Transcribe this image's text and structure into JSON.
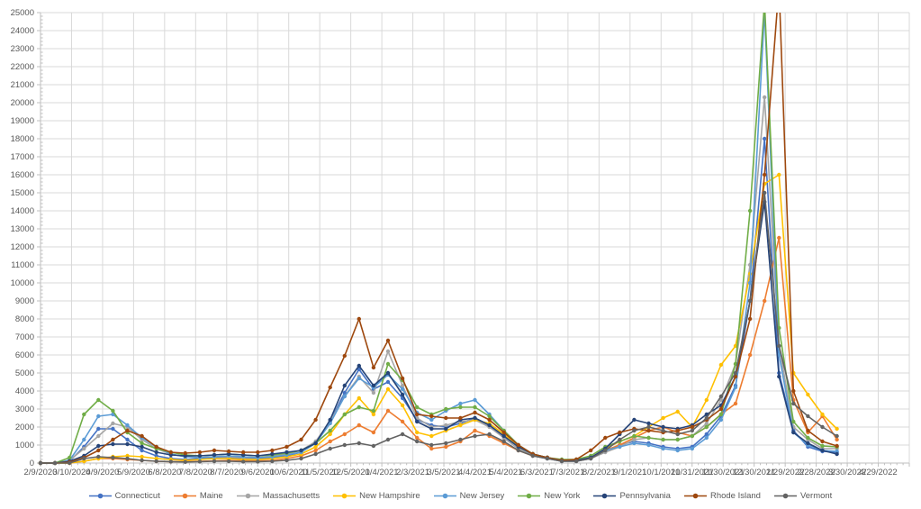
{
  "chart_data": {
    "type": "line",
    "title": "",
    "legend_position": "bottom",
    "grid": true,
    "y_axis": {
      "min": 0,
      "max": 25000,
      "tick_step": 1000
    },
    "x_axis": {
      "start_date": "2/9/2020",
      "interval_days": 30,
      "labels": [
        "2/9/2020",
        "3/10/2020",
        "4/9/2020",
        "5/9/2020",
        "6/8/2020",
        "7/8/2020",
        "8/7/2020",
        "9/6/2020",
        "10/6/2020",
        "11/5/2020",
        "12/5/2020",
        "1/4/2021",
        "2/3/2021",
        "3/5/2021",
        "4/4/2021",
        "5/4/2021",
        "6/3/2021",
        "7/3/2021",
        "8/2/2021",
        "9/1/2021",
        "10/1/2021",
        "10/31/2021",
        "11/30/2021",
        "12/30/2021",
        "1/29/2022",
        "2/28/2022",
        "3/30/2022",
        "4/29/2022"
      ]
    },
    "point_interval_days": 14,
    "dates": [
      "2/9/2020",
      "2/23/2020",
      "3/8/2020",
      "3/22/2020",
      "4/5/2020",
      "4/19/2020",
      "5/3/2020",
      "5/17/2020",
      "5/31/2020",
      "6/14/2020",
      "6/28/2020",
      "7/12/2020",
      "7/26/2020",
      "8/9/2020",
      "8/23/2020",
      "9/6/2020",
      "9/20/2020",
      "10/4/2020",
      "10/18/2020",
      "11/1/2020",
      "11/15/2020",
      "11/29/2020",
      "12/13/2020",
      "12/27/2020",
      "1/10/2021",
      "1/24/2021",
      "2/7/2021",
      "2/21/2021",
      "3/7/2021",
      "3/21/2021",
      "4/4/2021",
      "4/18/2021",
      "5/2/2021",
      "5/16/2021",
      "5/30/2021",
      "6/13/2021",
      "6/27/2021",
      "7/11/2021",
      "7/25/2021",
      "8/8/2021",
      "8/22/2021",
      "9/5/2021",
      "9/19/2021",
      "10/3/2021",
      "10/17/2021",
      "10/31/2021",
      "11/14/2021",
      "11/28/2021",
      "12/12/2021",
      "12/26/2021",
      "1/9/2022",
      "1/23/2022",
      "2/6/2022",
      "2/20/2022",
      "3/6/2022",
      "3/20/2022"
    ],
    "series": [
      {
        "name": "Connecticut",
        "color": "#4472C4",
        "values": [
          0,
          0,
          100,
          900,
          1900,
          1900,
          1300,
          700,
          400,
          250,
          200,
          250,
          300,
          300,
          250,
          250,
          300,
          400,
          600,
          1100,
          2300,
          3900,
          5200,
          4100,
          4500,
          3600,
          2400,
          2100,
          2000,
          2200,
          2500,
          2100,
          1400,
          800,
          400,
          250,
          100,
          100,
          250,
          700,
          1000,
          1200,
          1100,
          900,
          800,
          900,
          1600,
          2600,
          4300,
          9000,
          18000,
          5000,
          1800,
          900,
          650,
          600
        ]
      },
      {
        "name": "Maine",
        "color": "#ED7D31",
        "values": [
          0,
          0,
          0,
          100,
          250,
          250,
          200,
          150,
          100,
          80,
          80,
          100,
          120,
          150,
          130,
          120,
          150,
          250,
          400,
          700,
          1200,
          1600,
          2100,
          1700,
          2900,
          2300,
          1400,
          800,
          900,
          1200,
          1800,
          1500,
          1100,
          700,
          400,
          300,
          150,
          150,
          300,
          700,
          1000,
          1400,
          1800,
          2000,
          1700,
          1500,
          2000,
          2700,
          3300,
          6000,
          9000,
          12500,
          3500,
          1700,
          2600,
          1300
        ]
      },
      {
        "name": "Massachusetts",
        "color": "#A5A5A5",
        "values": [
          0,
          0,
          150,
          800,
          1500,
          2200,
          2000,
          1300,
          800,
          500,
          350,
          300,
          350,
          350,
          300,
          300,
          400,
          500,
          700,
          1200,
          2300,
          3700,
          4800,
          3900,
          6200,
          4300,
          2500,
          2000,
          2100,
          2300,
          2400,
          2000,
          1400,
          800,
          400,
          250,
          100,
          100,
          250,
          600,
          900,
          1300,
          1400,
          1300,
          1300,
          1500,
          2200,
          3500,
          5500,
          11000,
          20300,
          6500,
          2000,
          1300,
          800,
          800
        ]
      },
      {
        "name": "New Hampshire",
        "color": "#FFC000",
        "values": [
          0,
          0,
          0,
          100,
          250,
          350,
          400,
          350,
          250,
          200,
          150,
          200,
          250,
          250,
          200,
          200,
          250,
          350,
          500,
          900,
          1600,
          2700,
          3600,
          2700,
          4100,
          3200,
          1700,
          1500,
          1800,
          2100,
          2400,
          2200,
          1600,
          900,
          500,
          300,
          150,
          150,
          300,
          800,
          1200,
          1500,
          2000,
          2500,
          2850,
          2000,
          3500,
          5450,
          6500,
          10500,
          15500,
          16000,
          5000,
          3800,
          2700,
          1900
        ]
      },
      {
        "name": "New Jersey",
        "color": "#5B9BD5",
        "values": [
          0,
          0,
          150,
          1300,
          2600,
          2700,
          2100,
          1400,
          900,
          500,
          350,
          300,
          350,
          400,
          350,
          300,
          350,
          450,
          600,
          1100,
          2200,
          3700,
          4700,
          4200,
          4900,
          4100,
          2800,
          2400,
          2900,
          3300,
          3500,
          2700,
          1800,
          1000,
          500,
          300,
          150,
          150,
          300,
          700,
          900,
          1100,
          1000,
          800,
          700,
          800,
          1400,
          2400,
          4200,
          10000,
          25100,
          6000,
          1700,
          1000,
          700,
          650
        ]
      },
      {
        "name": "New York",
        "color": "#70AD47",
        "values": [
          0,
          0,
          300,
          2700,
          3500,
          2900,
          1700,
          1100,
          800,
          600,
          450,
          400,
          450,
          500,
          450,
          400,
          450,
          550,
          700,
          1100,
          1800,
          2700,
          3100,
          2900,
          5500,
          4600,
          3100,
          2700,
          3000,
          3100,
          3100,
          2600,
          1800,
          1000,
          500,
          300,
          200,
          200,
          400,
          900,
          1200,
          1500,
          1400,
          1300,
          1300,
          1500,
          2000,
          2700,
          5500,
          14000,
          25600,
          7500,
          2300,
          1400,
          950,
          900
        ]
      },
      {
        "name": "Pennsylvania",
        "color": "#264478",
        "values": [
          0,
          0,
          100,
          400,
          950,
          1050,
          1050,
          900,
          600,
          450,
          400,
          400,
          450,
          500,
          450,
          400,
          500,
          600,
          700,
          1100,
          2400,
          4300,
          5400,
          4300,
          5000,
          3800,
          2300,
          1900,
          1900,
          2400,
          2500,
          2100,
          1500,
          900,
          500,
          300,
          150,
          150,
          300,
          800,
          1600,
          2400,
          2200,
          2000,
          1900,
          2100,
          2700,
          3200,
          4800,
          9000,
          14500,
          4800,
          1700,
          1100,
          700,
          500
        ]
      },
      {
        "name": "Rhode Island",
        "color": "#9E480E",
        "values": [
          0,
          0,
          50,
          300,
          700,
          1300,
          1800,
          1500,
          900,
          600,
          550,
          600,
          700,
          650,
          600,
          600,
          700,
          900,
          1300,
          2400,
          4200,
          5950,
          8000,
          5300,
          6800,
          4700,
          2700,
          2600,
          2500,
          2500,
          2800,
          2400,
          1700,
          1000,
          500,
          300,
          150,
          200,
          700,
          1400,
          1700,
          1900,
          1800,
          1700,
          1800,
          2000,
          2400,
          3000,
          4800,
          8000,
          16000,
          26500,
          4000,
          1800,
          1200,
          950
        ]
      },
      {
        "name": "Vermont",
        "color": "#636363",
        "values": [
          0,
          0,
          0,
          250,
          350,
          300,
          250,
          150,
          100,
          80,
          60,
          80,
          100,
          100,
          80,
          80,
          100,
          150,
          250,
          500,
          800,
          1000,
          1100,
          950,
          1300,
          1600,
          1200,
          1000,
          1100,
          1300,
          1500,
          1600,
          1200,
          700,
          400,
          250,
          100,
          100,
          250,
          700,
          1300,
          1800,
          2000,
          1800,
          1600,
          1800,
          2500,
          3700,
          5000,
          9000,
          15000,
          6500,
          3300,
          2600,
          2000,
          1500
        ]
      }
    ]
  }
}
